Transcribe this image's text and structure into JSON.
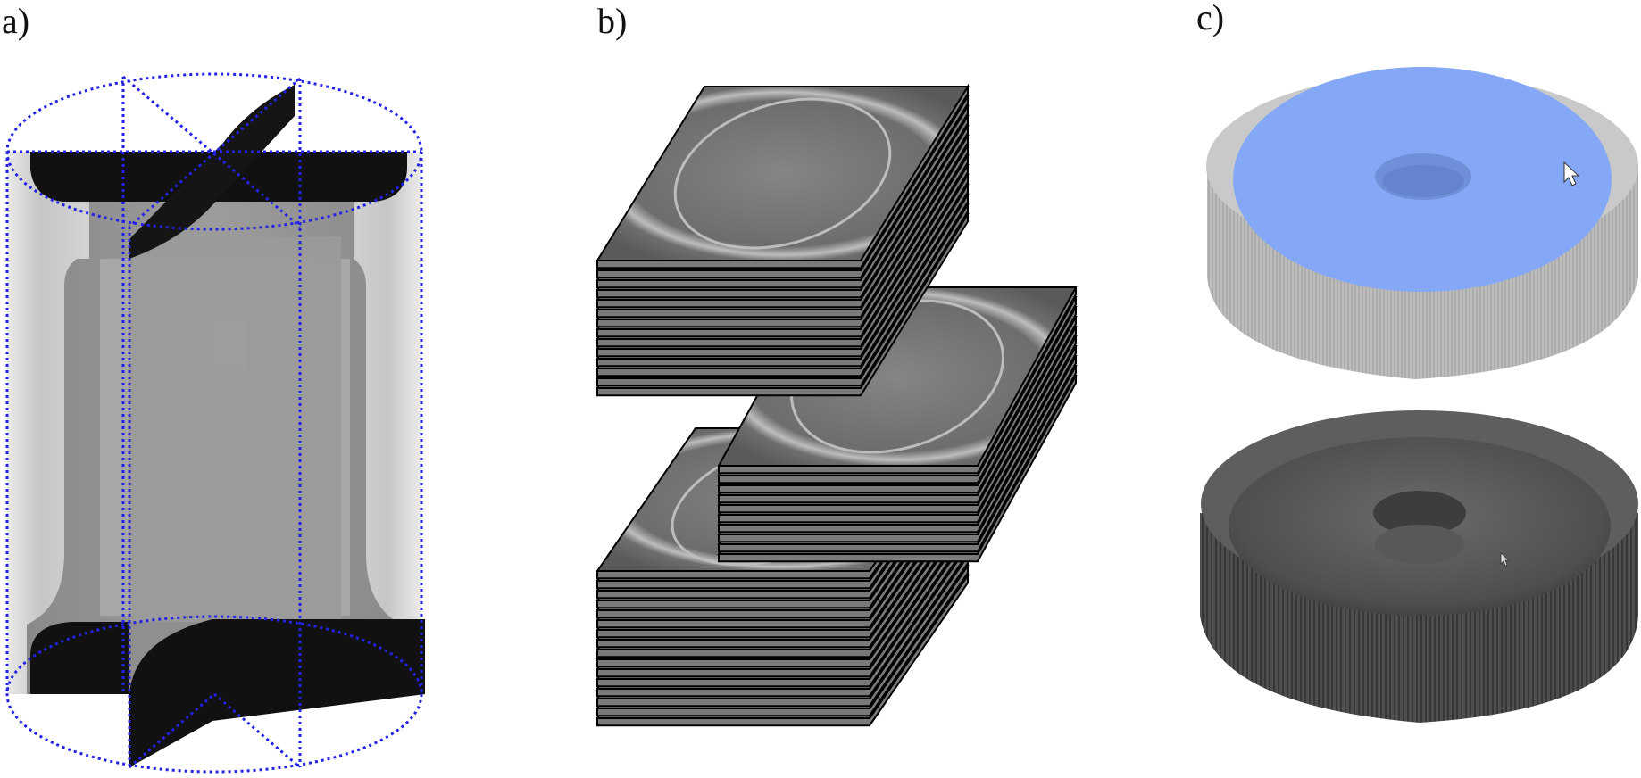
{
  "panels": {
    "a": {
      "label": "a)",
      "description_icon": "ct-projection-cylinder"
    },
    "b": {
      "label": "b)",
      "description_icon": "slice-stack"
    },
    "c": {
      "label": "c)",
      "description_icon": "3d-segmentation"
    }
  },
  "colors": {
    "dashed_outline": "#2323e6",
    "slice_fill": "#7a7a7a",
    "slice_stroke": "#000000",
    "segment_blue": "#84a8f5",
    "ring_grey": "#c8c8c8",
    "surface_dark": "#5a5a5a"
  },
  "stacks": {
    "upper_count": 14,
    "middle_count": 10,
    "lower_count": 16
  }
}
